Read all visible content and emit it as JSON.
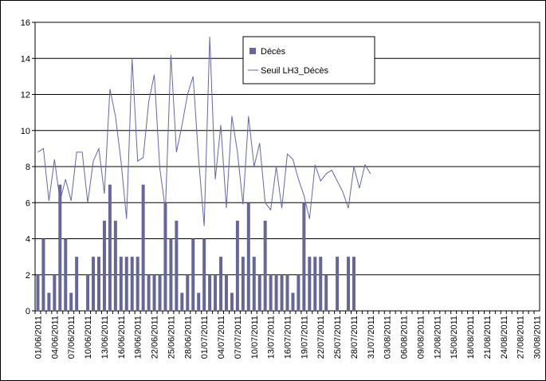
{
  "chart_data": {
    "type": "bar",
    "categories": [
      "01/06/2011",
      null,
      null,
      "04/06/2011",
      null,
      null,
      "07/06/2011",
      null,
      null,
      "10/06/2011",
      null,
      null,
      "13/06/2011",
      null,
      null,
      "16/06/2011",
      null,
      null,
      "19/06/2011",
      null,
      null,
      "22/06/2011",
      null,
      null,
      "25/06/2011",
      null,
      null,
      "28/06/2011",
      null,
      null,
      "01/07/2011",
      null,
      null,
      "04/07/2011",
      null,
      null,
      "07/07/2011",
      null,
      null,
      "10/07/2011",
      null,
      null,
      "13/07/2011",
      null,
      null,
      "16/07/2011",
      null,
      null,
      "19/07/2011",
      null,
      null,
      "22/07/2011",
      null,
      null,
      "25/07/2011",
      null,
      null,
      "28/07/2011",
      null,
      null,
      "31/07/2011",
      null,
      null,
      "03/08/2011",
      null,
      null,
      "06/08/2011",
      null,
      null,
      "09/08/2011",
      null,
      null,
      "12/08/2011",
      null,
      null,
      "15/08/2011",
      null,
      null,
      "18/08/2011",
      null,
      null,
      "21/08/2011",
      null,
      null,
      "24/08/2011",
      null,
      null,
      "27/08/2011",
      null,
      null,
      "30/08/2011"
    ],
    "series": [
      {
        "name": "Décès",
        "type": "bar",
        "color": "#666699",
        "values": [
          2,
          4,
          1,
          2,
          7,
          4,
          1,
          3,
          0,
          2,
          3,
          3,
          5,
          7,
          5,
          3,
          3,
          3,
          3,
          7,
          2,
          2,
          2,
          6,
          4,
          5,
          1,
          2,
          4,
          1,
          4,
          2,
          2,
          3,
          2,
          1,
          5,
          3,
          6,
          3,
          2,
          5,
          2,
          2,
          2,
          2,
          1,
          2,
          6,
          3,
          3,
          3,
          2,
          0,
          3,
          0,
          3,
          3,
          null,
          null,
          null,
          null,
          null,
          null,
          null,
          null,
          null,
          null,
          null,
          null,
          null,
          null,
          null,
          null,
          null,
          null,
          null,
          null,
          null,
          null,
          null,
          null,
          null,
          null,
          null,
          null,
          null,
          null,
          null,
          null,
          null
        ]
      },
      {
        "name": "Seuil LH3_Décès",
        "type": "line",
        "color": "#6666aa",
        "values": [
          8.8,
          9.0,
          6.1,
          8.4,
          6.1,
          7.3,
          6.1,
          8.8,
          8.8,
          6.0,
          8.3,
          9.0,
          6.5,
          12.3,
          10.8,
          8.3,
          5.1,
          14.0,
          8.3,
          8.5,
          11.6,
          13.1,
          7.9,
          5.6,
          14.2,
          8.8,
          10.3,
          12.0,
          13.0,
          8.4,
          4.7,
          15.2,
          7.3,
          10.3,
          5.7,
          10.8,
          8.8,
          5.9,
          10.8,
          8.0,
          9.3,
          6.0,
          5.6,
          8.0,
          5.7,
          8.7,
          8.4,
          7.3,
          6.4,
          5.1,
          8.1,
          7.2,
          7.6,
          7.8,
          7.2,
          6.6,
          5.7,
          8.0,
          6.8,
          8.1,
          7.6,
          null,
          null,
          null,
          null,
          null,
          null,
          null,
          null,
          null,
          null,
          null,
          null,
          null,
          null,
          null,
          null,
          null,
          null,
          null,
          null,
          null,
          null,
          null,
          null,
          null,
          null,
          null,
          null,
          null,
          null
        ]
      }
    ],
    "ylim": [
      0,
      16
    ],
    "yticks": [
      0,
      2,
      4,
      6,
      8,
      10,
      12,
      14,
      16
    ],
    "grid": true
  }
}
